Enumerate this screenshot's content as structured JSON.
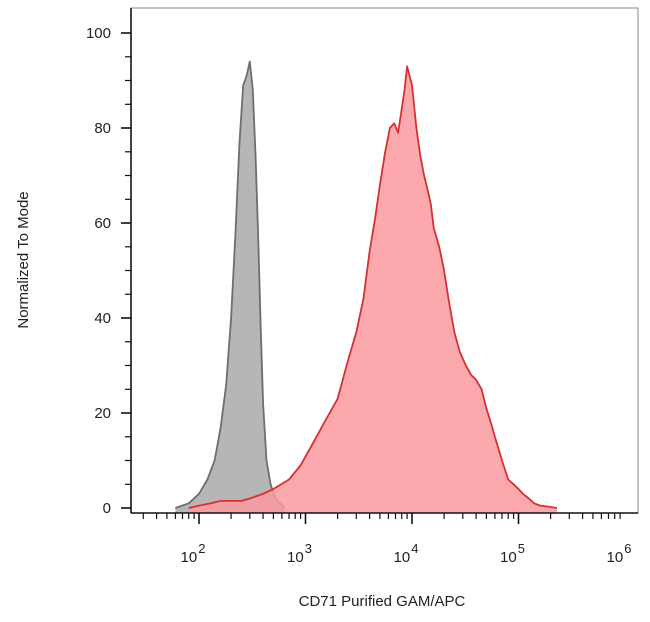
{
  "chart_data": {
    "type": "area",
    "title": "",
    "xlabel": "CD71 Purified GAM/APC",
    "ylabel": "Normalized To Mode",
    "x_scale": "log10",
    "xlim": [
      10,
      1000000
    ],
    "ylim": [
      0,
      105
    ],
    "grid": false,
    "x_ticks": [
      {
        "value": 100,
        "base": "10",
        "exp": "2"
      },
      {
        "value": 1000,
        "base": "10",
        "exp": "3"
      },
      {
        "value": 10000,
        "base": "10",
        "exp": "4"
      },
      {
        "value": 100000,
        "base": "10",
        "exp": "5"
      },
      {
        "value": 1000000,
        "base": "10",
        "exp": "6"
      }
    ],
    "y_ticks": [
      {
        "value": 0,
        "label": "0"
      },
      {
        "value": 20,
        "label": "20"
      },
      {
        "value": 40,
        "label": "40"
      },
      {
        "value": 60,
        "label": "60"
      },
      {
        "value": 80,
        "label": "80"
      },
      {
        "value": 100,
        "label": "100"
      }
    ],
    "series": [
      {
        "fill": "#a9a9a9",
        "stroke": "#6e6e6e",
        "x": [
          60,
          80,
          100,
          120,
          140,
          160,
          180,
          200,
          220,
          240,
          260,
          280,
          300,
          320,
          340,
          360,
          380,
          400,
          430,
          470,
          520,
          580,
          640
        ],
        "y": [
          0,
          1,
          3,
          6,
          10,
          17,
          26,
          40,
          58,
          77,
          89,
          91,
          94,
          88,
          74,
          57,
          38,
          22,
          10,
          5,
          2,
          1,
          0
        ]
      },
      {
        "fill": "#fb9a9f",
        "stroke": "#d23232",
        "x": [
          80,
          100,
          130,
          160,
          200,
          250,
          300,
          400,
          500,
          700,
          900,
          1200,
          1500,
          2000,
          2500,
          3000,
          3500,
          4000,
          4500,
          5000,
          5600,
          6200,
          6800,
          7400,
          8000,
          8500,
          9000,
          10000,
          11000,
          12000,
          13000,
          14000,
          15000,
          16000,
          18000,
          20000,
          22000,
          25000,
          28000,
          32000,
          36000,
          40000,
          45000,
          50000,
          55000,
          60000,
          70000,
          80000,
          90000,
          100000,
          110000,
          125000,
          140000,
          160000,
          190000,
          230000
        ],
        "y": [
          0,
          0.5,
          1,
          1.5,
          1.5,
          1.5,
          2,
          3,
          4,
          6,
          9,
          14,
          18,
          23,
          31,
          37,
          44,
          54,
          61,
          68,
          75,
          80,
          81,
          79,
          84,
          88,
          93,
          89,
          80,
          74,
          70,
          67,
          64,
          59,
          55,
          50,
          44,
          37,
          33,
          30,
          28,
          27,
          25,
          21,
          18,
          15,
          10,
          6,
          5,
          4,
          3,
          2,
          1,
          0.5,
          0.3,
          0
        ]
      }
    ]
  }
}
